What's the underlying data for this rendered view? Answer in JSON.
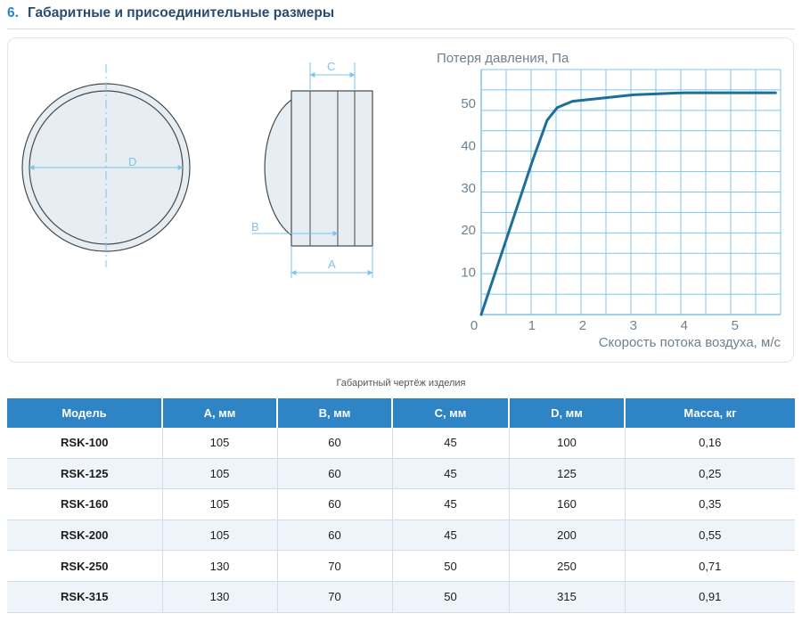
{
  "section": {
    "number": "6.",
    "title": "Габаритные и присоединительные размеры"
  },
  "drawing": {
    "labels": {
      "d": "D",
      "c": "C",
      "b": "B",
      "a": "A"
    }
  },
  "chart_data": {
    "type": "line",
    "title": "",
    "ylabel": "Потеря давления, Па",
    "xlabel": "Скорость потока воздуха, м/с",
    "xlim": [
      0,
      5.9
    ],
    "ylim": [
      0,
      58
    ],
    "xticks": [
      "0",
      "1",
      "2",
      "3",
      "4",
      "5"
    ],
    "yticks": [
      "10",
      "20",
      "30",
      "40",
      "50"
    ],
    "grid": true,
    "series": [
      {
        "x": [
          0,
          0.5,
          1.0,
          1.3,
          1.5,
          1.8,
          2.2,
          3.0,
          4.0,
          5.0,
          5.8
        ],
        "y": [
          0,
          18,
          36,
          46,
          49,
          50.5,
          51,
          52,
          52.5,
          52.5,
          52.5
        ]
      }
    ]
  },
  "caption": "Габаритный чертёж изделия",
  "table": {
    "headers": [
      "Модель",
      "A, мм",
      "B, мм",
      "C, мм",
      "D, мм",
      "Масса, кг"
    ],
    "rows": [
      [
        "RSK-100",
        "105",
        "60",
        "45",
        "100",
        "0,16"
      ],
      [
        "RSK-125",
        "105",
        "60",
        "45",
        "125",
        "0,25"
      ],
      [
        "RSK-160",
        "105",
        "60",
        "45",
        "160",
        "0,35"
      ],
      [
        "RSK-200",
        "105",
        "60",
        "45",
        "200",
        "0,55"
      ],
      [
        "RSK-250",
        "130",
        "70",
        "50",
        "250",
        "0,71"
      ],
      [
        "RSK-315",
        "130",
        "70",
        "50",
        "315",
        "0,91"
      ]
    ]
  }
}
